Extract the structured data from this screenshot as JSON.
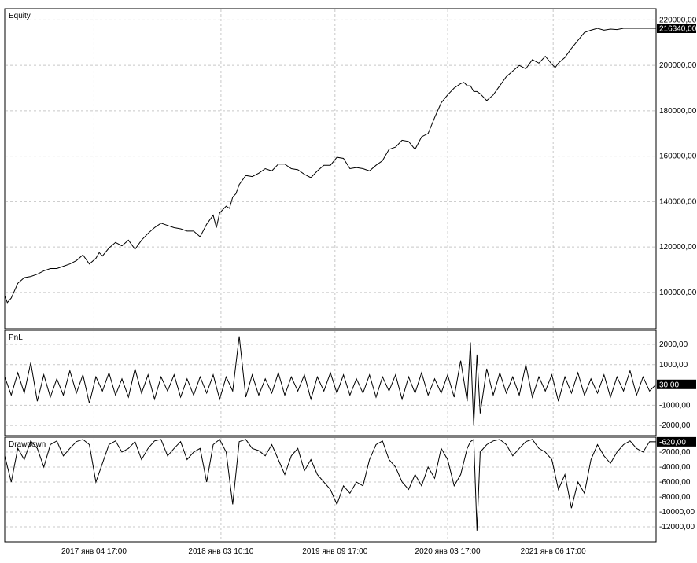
{
  "chart_data": [
    {
      "type": "line",
      "title": "Equity",
      "series": [
        {
          "name": "Equity",
          "x": [
            0.0,
            0.004,
            0.01,
            0.02,
            0.03,
            0.04,
            0.05,
            0.06,
            0.07,
            0.08,
            0.09,
            0.1,
            0.11,
            0.12,
            0.13,
            0.14,
            0.145,
            0.15,
            0.16,
            0.17,
            0.18,
            0.19,
            0.2,
            0.21,
            0.22,
            0.23,
            0.24,
            0.25,
            0.26,
            0.27,
            0.28,
            0.29,
            0.3,
            0.31,
            0.32,
            0.325,
            0.33,
            0.34,
            0.345,
            0.35,
            0.355,
            0.36,
            0.37,
            0.38,
            0.39,
            0.4,
            0.41,
            0.42,
            0.43,
            0.44,
            0.45,
            0.46,
            0.47,
            0.48,
            0.49,
            0.5,
            0.51,
            0.52,
            0.53,
            0.54,
            0.55,
            0.56,
            0.57,
            0.58,
            0.59,
            0.6,
            0.61,
            0.62,
            0.63,
            0.64,
            0.65,
            0.66,
            0.67,
            0.68,
            0.69,
            0.7,
            0.705,
            0.71,
            0.715,
            0.72,
            0.725,
            0.73,
            0.74,
            0.75,
            0.76,
            0.77,
            0.78,
            0.79,
            0.8,
            0.81,
            0.82,
            0.83,
            0.84,
            0.845,
            0.85,
            0.86,
            0.87,
            0.88,
            0.89,
            0.9,
            0.91,
            0.92,
            0.93,
            0.94,
            0.95,
            0.96,
            0.97,
            0.98,
            0.99,
            1.0
          ],
          "y": [
            98500,
            95500,
            97500,
            104000,
            106500,
            107000,
            108000,
            109500,
            110500,
            110500,
            111500,
            112500,
            114000,
            116500,
            112500,
            115000,
            117500,
            116000,
            119500,
            122000,
            120500,
            123000,
            119000,
            123000,
            126000,
            128500,
            130500,
            129500,
            128500,
            128000,
            127000,
            127000,
            124500,
            130000,
            134000,
            128500,
            135000,
            138000,
            137000,
            142000,
            143500,
            147500,
            151500,
            151000,
            152500,
            154500,
            153500,
            156500,
            156500,
            154500,
            154000,
            152000,
            150500,
            153500,
            156000,
            156000,
            159500,
            159000,
            154500,
            155000,
            154500,
            153500,
            156000,
            158000,
            163000,
            164000,
            167000,
            166500,
            163000,
            168500,
            170000,
            177000,
            183500,
            187000,
            190000,
            192000,
            192500,
            191000,
            191000,
            188500,
            188500,
            187500,
            184500,
            187000,
            191000,
            195000,
            197500,
            200000,
            198500,
            202500,
            201000,
            204000,
            200500,
            199000,
            201000,
            203500,
            207500,
            211000,
            214500,
            215500,
            216340,
            215500,
            216000,
            215800,
            216340,
            216340,
            216340,
            216340,
            216340,
            216340
          ],
          "last_value_label": "216340,00"
        }
      ],
      "x_range": [
        0,
        1
      ],
      "ylim": [
        84000,
        225000
      ],
      "yticks": [
        100000,
        120000,
        140000,
        160000,
        180000,
        200000,
        220000
      ],
      "ytick_labels": [
        "100000,00",
        "120000,00",
        "140000,00",
        "160000,00",
        "180000,00",
        "200000,00",
        "220000,00"
      ],
      "grid": true
    },
    {
      "type": "line",
      "title": "PnL",
      "series": [
        {
          "name": "PnL",
          "x": [
            0.0,
            0.01,
            0.02,
            0.03,
            0.04,
            0.05,
            0.06,
            0.07,
            0.08,
            0.09,
            0.1,
            0.11,
            0.12,
            0.13,
            0.14,
            0.15,
            0.16,
            0.17,
            0.18,
            0.19,
            0.2,
            0.21,
            0.22,
            0.23,
            0.24,
            0.25,
            0.26,
            0.27,
            0.28,
            0.29,
            0.3,
            0.31,
            0.32,
            0.33,
            0.34,
            0.35,
            0.36,
            0.37,
            0.38,
            0.39,
            0.4,
            0.41,
            0.42,
            0.43,
            0.44,
            0.45,
            0.46,
            0.47,
            0.48,
            0.49,
            0.5,
            0.51,
            0.52,
            0.53,
            0.54,
            0.55,
            0.56,
            0.57,
            0.58,
            0.59,
            0.6,
            0.61,
            0.62,
            0.63,
            0.64,
            0.65,
            0.66,
            0.67,
            0.68,
            0.69,
            0.7,
            0.71,
            0.715,
            0.72,
            0.725,
            0.73,
            0.74,
            0.75,
            0.76,
            0.77,
            0.78,
            0.79,
            0.8,
            0.81,
            0.82,
            0.83,
            0.84,
            0.85,
            0.86,
            0.87,
            0.88,
            0.89,
            0.9,
            0.91,
            0.92,
            0.93,
            0.94,
            0.95,
            0.96,
            0.97,
            0.98,
            0.99,
            1.0
          ],
          "y": [
            400,
            -500,
            600,
            -400,
            1100,
            -800,
            500,
            -600,
            300,
            -500,
            700,
            -400,
            500,
            -900,
            400,
            -300,
            600,
            -500,
            300,
            -600,
            800,
            -400,
            500,
            -700,
            400,
            -300,
            500,
            -600,
            300,
            -500,
            400,
            -400,
            500,
            -700,
            400,
            -300,
            2400,
            -600,
            500,
            -500,
            300,
            -400,
            600,
            -500,
            400,
            -300,
            500,
            -700,
            400,
            -300,
            600,
            -400,
            500,
            -500,
            300,
            -400,
            500,
            -600,
            400,
            -300,
            500,
            -700,
            400,
            -400,
            600,
            -500,
            300,
            -400,
            500,
            -600,
            1200,
            -800,
            2100,
            -2000,
            1500,
            -1400,
            800,
            -500,
            600,
            -400,
            400,
            -500,
            1000,
            -600,
            400,
            -300,
            500,
            -800,
            400,
            -400,
            600,
            -500,
            300,
            -400,
            500,
            -600,
            400,
            -300,
            700,
            -500,
            400,
            -300,
            30
          ],
          "last_value_label": "30,00"
        }
      ],
      "x_range": [
        0,
        1
      ],
      "ylim": [
        -2500,
        2700
      ],
      "yticks": [
        -2000,
        -1000,
        1000,
        2000
      ],
      "ytick_labels": [
        "-2000,00",
        "-1000,00",
        "1000,00",
        "2000,00"
      ],
      "grid": true
    },
    {
      "type": "line",
      "title": "Drawdown",
      "series": [
        {
          "name": "Drawdown",
          "x": [
            0.0,
            0.01,
            0.02,
            0.03,
            0.04,
            0.05,
            0.06,
            0.07,
            0.08,
            0.09,
            0.1,
            0.11,
            0.12,
            0.13,
            0.14,
            0.15,
            0.16,
            0.17,
            0.18,
            0.19,
            0.2,
            0.21,
            0.22,
            0.23,
            0.24,
            0.25,
            0.26,
            0.27,
            0.28,
            0.29,
            0.3,
            0.31,
            0.32,
            0.33,
            0.34,
            0.35,
            0.36,
            0.37,
            0.38,
            0.39,
            0.4,
            0.41,
            0.42,
            0.43,
            0.44,
            0.45,
            0.46,
            0.47,
            0.48,
            0.49,
            0.5,
            0.51,
            0.52,
            0.53,
            0.54,
            0.55,
            0.56,
            0.57,
            0.58,
            0.59,
            0.6,
            0.61,
            0.62,
            0.63,
            0.64,
            0.65,
            0.66,
            0.67,
            0.68,
            0.69,
            0.7,
            0.71,
            0.715,
            0.72,
            0.725,
            0.73,
            0.74,
            0.75,
            0.76,
            0.77,
            0.78,
            0.79,
            0.8,
            0.81,
            0.82,
            0.83,
            0.84,
            0.85,
            0.86,
            0.87,
            0.88,
            0.89,
            0.9,
            0.91,
            0.92,
            0.93,
            0.94,
            0.95,
            0.96,
            0.97,
            0.98,
            0.99,
            1.0
          ],
          "y": [
            -2500,
            -6000,
            -1500,
            -3000,
            -500,
            -1500,
            -4000,
            -1000,
            -500,
            -2500,
            -1500,
            -600,
            -300,
            -1000,
            -6000,
            -3500,
            -1000,
            -500,
            -2000,
            -1500,
            -600,
            -3000,
            -1500,
            -500,
            -300,
            -2500,
            -1500,
            -600,
            -3000,
            -2000,
            -1500,
            -6000,
            -1000,
            -300,
            -2000,
            -9000,
            -600,
            -300,
            -1500,
            -1800,
            -2500,
            -1000,
            -3000,
            -5000,
            -2500,
            -1500,
            -4500,
            -3000,
            -5000,
            -6000,
            -7000,
            -9000,
            -6500,
            -7500,
            -6000,
            -6500,
            -3000,
            -1000,
            -500,
            -3000,
            -4000,
            -6000,
            -7000,
            -5000,
            -6500,
            -4000,
            -5500,
            -1500,
            -3000,
            -6500,
            -5000,
            -1500,
            -600,
            -300,
            -12500,
            -2000,
            -1000,
            -500,
            -300,
            -1000,
            -2500,
            -1500,
            -600,
            -300,
            -1500,
            -2000,
            -3000,
            -7000,
            -5000,
            -9500,
            -6000,
            -7500,
            -3000,
            -1000,
            -2500,
            -3500,
            -2000,
            -1000,
            -500,
            -1500,
            -2000,
            -600,
            -620
          ],
          "last_value_label": "-620,00"
        }
      ],
      "x_range": [
        0,
        1
      ],
      "ylim": [
        -14000,
        0
      ],
      "yticks": [
        -2000,
        -4000,
        -6000,
        -8000,
        -10000,
        -12000
      ],
      "ytick_labels": [
        "-2000,00",
        "-4000,00",
        "-6000,00",
        "-8000,00",
        "-10000,00",
        "-12000,00"
      ],
      "grid": true
    }
  ],
  "x_axis": {
    "ticks": [
      0.137,
      0.332,
      0.507,
      0.68,
      0.842
    ],
    "tick_labels": [
      "2017 янв 04 17:00",
      "2018 янв 03 10:10",
      "2019 янв 09 17:00",
      "2020 янв 03 17:00",
      "2021 янв 06 17:00"
    ]
  },
  "colors": {
    "background": "#ffffff",
    "series": "#000000",
    "grid": "#c8c8c8"
  }
}
